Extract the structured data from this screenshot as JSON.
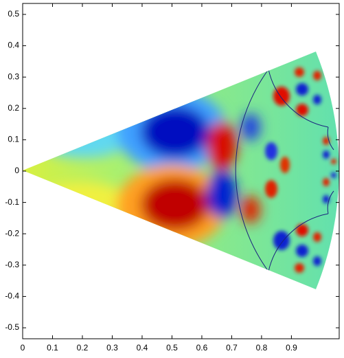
{
  "chart_data": {
    "type": "image",
    "xlim": [
      0,
      1.06
    ],
    "ylim": [
      -0.535,
      0.535
    ],
    "xticks": [
      0,
      0.1,
      0.2,
      0.3,
      0.4,
      0.5,
      0.6,
      0.7,
      0.8,
      0.9
    ],
    "yticks": [
      -0.5,
      -0.4,
      -0.3,
      -0.2,
      -0.1,
      0,
      0.1,
      0.2,
      0.3,
      0.4,
      0.5
    ]
  }
}
